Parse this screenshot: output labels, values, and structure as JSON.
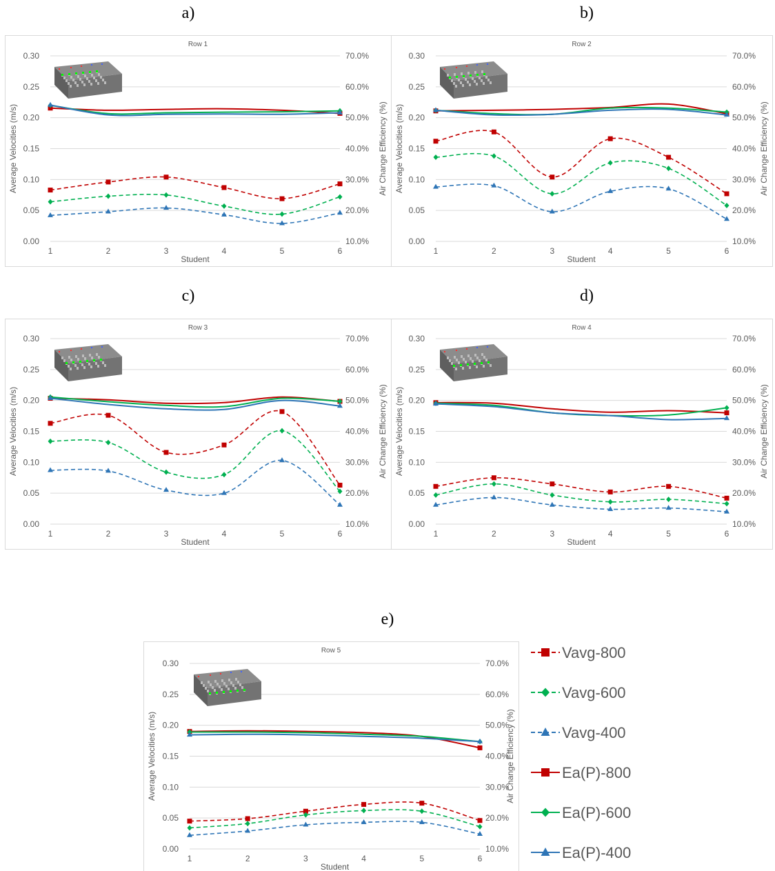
{
  "panel_letters": [
    "a)",
    "b)",
    "c)",
    "d)",
    "e)"
  ],
  "colors": {
    "c800": "#c00000",
    "c600": "#00b050",
    "c400": "#2e75b6"
  },
  "legend": {
    "items": [
      {
        "label": "Vavg-800",
        "color": "#c00000",
        "dashed": true,
        "marker": "square"
      },
      {
        "label": "Vavg-600",
        "color": "#00b050",
        "dashed": true,
        "marker": "diamond"
      },
      {
        "label": "Vavg-400",
        "color": "#2e75b6",
        "dashed": true,
        "marker": "triangle"
      },
      {
        "label": "Ea(P)-800",
        "color": "#c00000",
        "dashed": false,
        "marker": "square"
      },
      {
        "label": "Ea(P)-600",
        "color": "#00b050",
        "dashed": false,
        "marker": "diamond"
      },
      {
        "label": "Ea(P)-400",
        "color": "#2e75b6",
        "dashed": false,
        "marker": "triangle"
      }
    ]
  },
  "chart_data": [
    {
      "type": "line",
      "title": "Row 1",
      "xlabel": "Student",
      "ylabel": "Average Velocities (m/s)",
      "y2label": "Air Change Efficiency (%)",
      "x": [
        1,
        2,
        3,
        4,
        5,
        6
      ],
      "ylim": [
        0,
        0.3
      ],
      "yticks": [
        "0.00",
        "0.05",
        "0.10",
        "0.15",
        "0.20",
        "0.25",
        "0.30"
      ],
      "y2lim": [
        10,
        70
      ],
      "y2ticks": [
        "10.0%",
        "20.0%",
        "30.0%",
        "40.0%",
        "50.0%",
        "60.0%",
        "70.0%"
      ],
      "series": [
        {
          "name": "Vavg-800",
          "axis": "left",
          "values": [
            0.083,
            0.096,
            0.104,
            0.087,
            0.069,
            0.093
          ]
        },
        {
          "name": "Vavg-600",
          "axis": "left",
          "values": [
            0.064,
            0.073,
            0.075,
            0.057,
            0.044,
            0.072
          ]
        },
        {
          "name": "Vavg-400",
          "axis": "left",
          "values": [
            0.042,
            0.048,
            0.054,
            0.043,
            0.029,
            0.046
          ]
        },
        {
          "name": "Ea(P)-800",
          "axis": "right",
          "values": [
            53.1,
            52.4,
            52.7,
            52.9,
            52.4,
            51.4
          ]
        },
        {
          "name": "Ea(P)-600",
          "axis": "right",
          "values": [
            54.0,
            51.3,
            51.6,
            51.8,
            51.9,
            52.2
          ]
        },
        {
          "name": "Ea(P)-400",
          "axis": "right",
          "values": [
            54.1,
            50.9,
            51.1,
            51.2,
            51.1,
            51.6
          ]
        }
      ]
    },
    {
      "type": "line",
      "title": "Row 2",
      "xlabel": "Student",
      "ylabel": "Average Velocities (m/s)",
      "y2label": "Air Change Efficiency (%)",
      "x": [
        1,
        2,
        3,
        4,
        5,
        6
      ],
      "ylim": [
        0,
        0.3
      ],
      "yticks": [
        "0.00",
        "0.05",
        "0.10",
        "0.15",
        "0.20",
        "0.25",
        "0.30"
      ],
      "y2lim": [
        10,
        70
      ],
      "y2ticks": [
        "10.0%",
        "20.0%",
        "30.0%",
        "40.0%",
        "50.0%",
        "60.0%",
        "70.0%"
      ],
      "series": [
        {
          "name": "Vavg-800",
          "axis": "left",
          "values": [
            0.162,
            0.177,
            0.104,
            0.166,
            0.136,
            0.077
          ]
        },
        {
          "name": "Vavg-600",
          "axis": "left",
          "values": [
            0.136,
            0.138,
            0.077,
            0.127,
            0.118,
            0.058
          ]
        },
        {
          "name": "Vavg-400",
          "axis": "left",
          "values": [
            0.088,
            0.09,
            0.048,
            0.081,
            0.085,
            0.036
          ]
        },
        {
          "name": "Ea(P)-800",
          "axis": "right",
          "values": [
            52.2,
            52.4,
            52.7,
            53.3,
            54.4,
            51.3
          ]
        },
        {
          "name": "Ea(P)-600",
          "axis": "right",
          "values": [
            52.4,
            51.3,
            51.1,
            53.1,
            53.1,
            51.8
          ]
        },
        {
          "name": "Ea(P)-400",
          "axis": "right",
          "values": [
            52.4,
            50.9,
            51.1,
            52.4,
            52.7,
            50.9
          ]
        }
      ]
    },
    {
      "type": "line",
      "title": "Row 3",
      "xlabel": "Student",
      "ylabel": "Average Velocities (m/s)",
      "y2label": "Air Change Efficiency (%)",
      "x": [
        1,
        2,
        3,
        4,
        5,
        6
      ],
      "ylim": [
        0,
        0.3
      ],
      "yticks": [
        "0.00",
        "0.05",
        "0.10",
        "0.15",
        "0.20",
        "0.25",
        "0.30"
      ],
      "y2lim": [
        10,
        70
      ],
      "y2ticks": [
        "10.0%",
        "20.0%",
        "30.0%",
        "40.0%",
        "50.0%",
        "60.0%",
        "70.0%"
      ],
      "series": [
        {
          "name": "Vavg-800",
          "axis": "left",
          "values": [
            0.163,
            0.176,
            0.116,
            0.128,
            0.182,
            0.063
          ]
        },
        {
          "name": "Vavg-600",
          "axis": "left",
          "values": [
            0.134,
            0.132,
            0.084,
            0.08,
            0.151,
            0.053
          ]
        },
        {
          "name": "Vavg-400",
          "axis": "left",
          "values": [
            0.087,
            0.086,
            0.055,
            0.05,
            0.103,
            0.031
          ]
        },
        {
          "name": "Ea(P)-800",
          "axis": "right",
          "values": [
            50.7,
            50.2,
            49.1,
            49.3,
            51.1,
            49.7
          ]
        },
        {
          "name": "Ea(P)-600",
          "axis": "right",
          "values": [
            51.1,
            49.6,
            48.4,
            48.0,
            50.7,
            49.7
          ]
        },
        {
          "name": "Ea(P)-400",
          "axis": "right",
          "values": [
            50.7,
            48.7,
            47.3,
            47.1,
            50.0,
            48.2
          ]
        }
      ]
    },
    {
      "type": "line",
      "title": "Row 4",
      "xlabel": "Student",
      "ylabel": "Average Velocities (m/s)",
      "y2label": "Air Change Efficiency (%)",
      "x": [
        1,
        2,
        3,
        4,
        5,
        6
      ],
      "ylim": [
        0,
        0.3
      ],
      "yticks": [
        "0.00",
        "0.05",
        "0.10",
        "0.15",
        "0.20",
        "0.25",
        "0.30"
      ],
      "y2lim": [
        10,
        70
      ],
      "y2ticks": [
        "10.0%",
        "20.0%",
        "30.0%",
        "40.0%",
        "50.0%",
        "60.0%",
        "70.0%"
      ],
      "series": [
        {
          "name": "Vavg-800",
          "axis": "left",
          "values": [
            0.061,
            0.075,
            0.065,
            0.052,
            0.061,
            0.042
          ]
        },
        {
          "name": "Vavg-600",
          "axis": "left",
          "values": [
            0.047,
            0.065,
            0.047,
            0.036,
            0.04,
            0.033
          ]
        },
        {
          "name": "Vavg-400",
          "axis": "left",
          "values": [
            0.031,
            0.043,
            0.031,
            0.024,
            0.026,
            0.02
          ]
        },
        {
          "name": "Ea(P)-800",
          "axis": "right",
          "values": [
            49.3,
            49.1,
            47.3,
            46.2,
            46.7,
            46.0
          ]
        },
        {
          "name": "Ea(P)-600",
          "axis": "right",
          "values": [
            49.1,
            48.4,
            46.0,
            45.1,
            45.3,
            47.6
          ]
        },
        {
          "name": "Ea(P)-400",
          "axis": "right",
          "values": [
            48.9,
            48.0,
            46.0,
            45.1,
            43.8,
            44.2
          ]
        }
      ]
    },
    {
      "type": "line",
      "title": "Row 5",
      "xlabel": "Student",
      "ylabel": "Average Velocities (m/s)",
      "y2label": "Air Change Efficiency (%)",
      "x": [
        1,
        2,
        3,
        4,
        5,
        6
      ],
      "ylim": [
        0,
        0.3
      ],
      "yticks": [
        "0.00",
        "0.05",
        "0.10",
        "0.15",
        "0.20",
        "0.25",
        "0.30"
      ],
      "y2lim": [
        10,
        70
      ],
      "y2ticks": [
        "10.0%",
        "20.0%",
        "30.0%",
        "40.0%",
        "50.0%",
        "60.0%",
        "70.0%"
      ],
      "series": [
        {
          "name": "Vavg-800",
          "axis": "left",
          "values": [
            0.045,
            0.049,
            0.061,
            0.072,
            0.074,
            0.046
          ]
        },
        {
          "name": "Vavg-600",
          "axis": "left",
          "values": [
            0.034,
            0.041,
            0.055,
            0.062,
            0.061,
            0.036
          ]
        },
        {
          "name": "Vavg-400",
          "axis": "left",
          "values": [
            0.022,
            0.029,
            0.039,
            0.043,
            0.043,
            0.024
          ]
        },
        {
          "name": "Ea(P)-800",
          "axis": "right",
          "values": [
            48.0,
            48.2,
            48.0,
            47.6,
            46.4,
            42.7
          ]
        },
        {
          "name": "Ea(P)-600",
          "axis": "right",
          "values": [
            47.8,
            47.8,
            47.6,
            47.1,
            46.4,
            44.7
          ]
        },
        {
          "name": "Ea(P)-400",
          "axis": "right",
          "values": [
            46.9,
            47.1,
            46.9,
            46.4,
            45.8,
            44.7
          ]
        }
      ]
    }
  ]
}
